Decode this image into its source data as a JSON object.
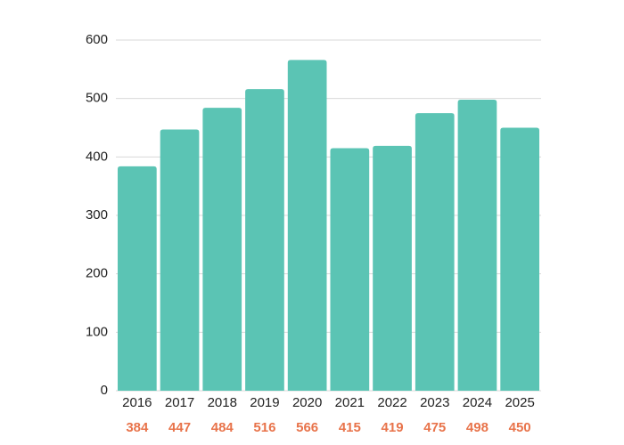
{
  "chart_data": {
    "type": "bar",
    "categories": [
      "2016",
      "2017",
      "2018",
      "2019",
      "2020",
      "2021",
      "2022",
      "2023",
      "2024",
      "2025"
    ],
    "values": [
      384,
      447,
      484,
      516,
      566,
      415,
      419,
      475,
      498,
      450
    ],
    "color": "#5bc4b4",
    "value_label_color": "#e8734a",
    "ylim": [
      0,
      600
    ],
    "yticks": [
      0,
      100,
      200,
      300,
      400,
      500,
      600
    ],
    "grid": true
  }
}
